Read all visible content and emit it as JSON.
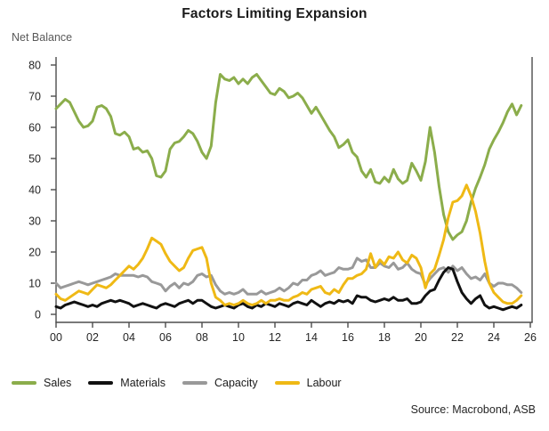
{
  "header": {
    "title": "Factors Limiting Expansion",
    "y_axis_unit": "Net Balance"
  },
  "footer": {
    "source": "Source: Macrobond, ASB"
  },
  "colors": {
    "axis": "#4d4d4d",
    "tick_label": "#262626",
    "sales": "#8BAD4B",
    "materials": "#111111",
    "capacity": "#999999",
    "labour": "#EFB915"
  },
  "chart_data": {
    "type": "line",
    "title": "Factors Limiting Expansion",
    "ylabel": "Net Balance",
    "xlabel": "",
    "grid": false,
    "legend_position": "bottom",
    "ylim": [
      0,
      80
    ],
    "xlim": [
      2000,
      2026
    ],
    "y_ticks": [
      0,
      10,
      20,
      30,
      40,
      50,
      60,
      70,
      80
    ],
    "x_tick_labels": [
      "00",
      "02",
      "04",
      "06",
      "08",
      "10",
      "12",
      "14",
      "16",
      "18",
      "20",
      "22",
      "24",
      "26"
    ],
    "x_start": 2000,
    "x_step": 0.25,
    "series": [
      {
        "name": "Sales",
        "color": "#8BAD4B",
        "values": [
          66,
          67.5,
          69,
          68,
          65,
          62,
          60,
          60.5,
          62,
          66.5,
          67,
          66,
          63.5,
          58,
          57.5,
          58.5,
          57,
          53,
          53.5,
          52,
          52.5,
          50,
          44.5,
          44,
          46,
          53,
          55,
          55.5,
          57,
          59,
          58,
          55.5,
          52,
          50,
          54,
          68,
          77,
          75.5,
          75,
          76,
          74,
          75.5,
          74,
          76,
          77,
          75,
          73,
          71,
          70.5,
          72.5,
          71.5,
          69.5,
          70,
          71,
          69.5,
          67,
          64.5,
          66.5,
          64,
          61.5,
          59,
          57,
          53.5,
          54.5,
          56,
          52,
          50.5,
          46,
          44,
          46.5,
          42.5,
          42,
          44,
          42.5,
          46.5,
          43.5,
          42,
          43,
          48.5,
          46,
          43,
          49,
          60,
          52,
          41,
          32,
          26.5,
          24,
          25.5,
          26.5,
          30,
          36,
          40.5,
          44,
          48,
          53,
          56,
          58.5,
          61.5,
          65,
          67.5,
          64,
          67
        ]
      },
      {
        "name": "Materials",
        "color": "#111111",
        "values": [
          2.5,
          2,
          3,
          3.5,
          4,
          3.5,
          3,
          2.5,
          3,
          2.5,
          3.5,
          4,
          4.5,
          4,
          4.5,
          4,
          3.5,
          2.5,
          3,
          3.5,
          3,
          2.5,
          2,
          3,
          3.5,
          3,
          2.5,
          3.5,
          4,
          4.5,
          3.5,
          4.5,
          4.5,
          3.5,
          2.5,
          2,
          2.5,
          3,
          2.5,
          2,
          3,
          3.5,
          2.5,
          2,
          3,
          2.5,
          3.5,
          3,
          2.5,
          3.5,
          3,
          2.5,
          3.5,
          4,
          3.5,
          3,
          4.5,
          3.5,
          2.5,
          3.5,
          4,
          3.5,
          4.5,
          4,
          4.5,
          3.5,
          6,
          5.5,
          5.5,
          4.5,
          4,
          4.5,
          5,
          4.5,
          5.5,
          4.5,
          4.5,
          5,
          3.5,
          3.5,
          4,
          6,
          7.5,
          8,
          11,
          13.5,
          15,
          14.5,
          10.5,
          7,
          5,
          3.5,
          5,
          6,
          3,
          2,
          2.5,
          2,
          1.5,
          2,
          2.5,
          2,
          3
        ]
      },
      {
        "name": "Capacity",
        "color": "#999999",
        "values": [
          10,
          8.5,
          9,
          9.5,
          10,
          10.5,
          10,
          9.5,
          10,
          10.5,
          11,
          11.5,
          12,
          13,
          12.5,
          12.5,
          12.5,
          12.5,
          12,
          12.5,
          12,
          10.5,
          10,
          9.5,
          7.5,
          9,
          10,
          8.5,
          10,
          9.5,
          10.5,
          12.5,
          13,
          12,
          12.5,
          9.5,
          7.5,
          6.5,
          7,
          6.5,
          7,
          8,
          6.5,
          6.5,
          6.5,
          7.5,
          6.5,
          7,
          7.5,
          8.5,
          7.5,
          8.5,
          10,
          9.5,
          11,
          11,
          12.5,
          13,
          14,
          12.5,
          13,
          13.5,
          15,
          14.5,
          14.5,
          15,
          18,
          17,
          17.5,
          15,
          15,
          16.5,
          15.5,
          15,
          16.5,
          14.5,
          15,
          16.5,
          14.5,
          13.5,
          13,
          9.5,
          11.5,
          13,
          14.5,
          15,
          13.5,
          15.5,
          14,
          15,
          13,
          11.5,
          12,
          11,
          13,
          10,
          9,
          10,
          10,
          9.5,
          9.5,
          8.5,
          7
        ]
      },
      {
        "name": "Labour",
        "color": "#EFB915",
        "values": [
          6.5,
          5,
          4.5,
          5.5,
          6.5,
          7.5,
          7,
          6.5,
          8,
          9.5,
          9,
          8.5,
          9.5,
          11,
          12.5,
          14,
          15.5,
          14.5,
          16,
          18,
          21,
          24.5,
          23.5,
          22.5,
          19.5,
          17,
          15.5,
          14,
          15,
          18,
          20.5,
          21,
          21.5,
          18,
          10,
          5.5,
          4.5,
          3,
          3.5,
          3,
          3.5,
          4.5,
          3.5,
          3,
          3.5,
          4.5,
          3.5,
          4.5,
          4.5,
          5,
          4.5,
          4.5,
          5.5,
          6,
          7,
          6.5,
          8,
          8.5,
          9,
          7,
          6.5,
          8,
          7,
          9.5,
          11.5,
          11.5,
          12.5,
          13,
          14.5,
          19.5,
          15,
          17.5,
          16,
          18.5,
          18,
          20,
          17.5,
          16.5,
          19,
          18,
          15,
          8.5,
          13,
          14.5,
          19,
          24,
          31,
          36,
          36.5,
          38,
          41.5,
          38,
          33,
          26,
          17,
          10,
          7,
          5.5,
          4,
          3.5,
          3.5,
          4.5,
          6
        ]
      }
    ]
  }
}
